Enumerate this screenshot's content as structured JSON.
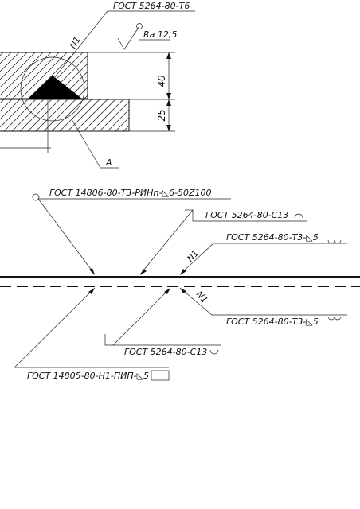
{
  "top": {
    "gost_weld": "ГОСТ 5264-80-Т6",
    "roughness": "Ra 12,5",
    "marker_n1": "N1",
    "dim_40": "40",
    "dim_25": "25",
    "view_a": "А"
  },
  "bottom": {
    "gost_resistance": "ГОСТ 14806-80-Т3-РИНп-◺6-50Z100",
    "gost_c13_top": "ГОСТ 5264-80-С13",
    "gost_t3_top": "ГОСТ 5264-80-Т3-◺5",
    "marker_n1_top": "N1",
    "marker_n1_bottom": "N1",
    "gost_t3_bottom": "ГОСТ 5264-80-Т3-◺5",
    "gost_c13_bottom": "ГОСТ 5264-80-С13",
    "gost_h1": "ГОСТ 14805-80-Н1-ПИП-◺5"
  }
}
